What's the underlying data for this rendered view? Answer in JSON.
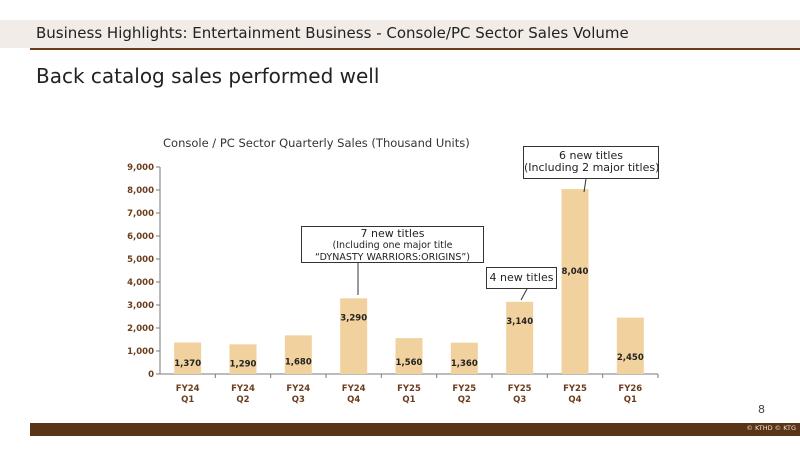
{
  "header": {
    "title": "Business Highlights: Entertainment Business - Console/PC Sector Sales Volume"
  },
  "headline": "Back catalog sales performed well",
  "colors": {
    "bar": "#f1d29e",
    "header_band": "#f1ece7",
    "rule": "#6b3d1e",
    "footer": "#5a3417",
    "tick_label": "#6b3d1e"
  },
  "chart_data": {
    "type": "bar",
    "title": "Console / PC Sector Quarterly Sales (Thousand Units)",
    "categories": [
      [
        "FY24",
        "Q1"
      ],
      [
        "FY24",
        "Q2"
      ],
      [
        "FY24",
        "Q3"
      ],
      [
        "FY24",
        "Q4"
      ],
      [
        "FY25",
        "Q1"
      ],
      [
        "FY25",
        "Q2"
      ],
      [
        "FY25",
        "Q3"
      ],
      [
        "FY25",
        "Q4"
      ],
      [
        "FY26",
        "Q1"
      ]
    ],
    "values": [
      1370,
      1290,
      1680,
      3290,
      1560,
      1360,
      3140,
      8040,
      2450
    ],
    "data_labels": [
      "1,370",
      "1,290",
      "1,680",
      "3,290",
      "1,560",
      "1,360",
      "3,140",
      "8,040",
      "2,450"
    ],
    "ylim": [
      0,
      9000
    ],
    "yticks": [
      0,
      1000,
      2000,
      3000,
      4000,
      5000,
      6000,
      7000,
      8000,
      9000
    ],
    "ytick_labels": [
      "0",
      "1,000",
      "2,000",
      "3,000",
      "4,000",
      "5,000",
      "6,000",
      "7,000",
      "8,000",
      "9,000"
    ],
    "grid": false,
    "annotations": [
      {
        "target": "FY24 Q4",
        "lines": [
          "7 new titles",
          "(Including one major title",
          "“DYNASTY WARRIORS:ORIGINS”)"
        ]
      },
      {
        "target": "FY25 Q3",
        "lines": [
          "4 new titles"
        ]
      },
      {
        "target": "FY25 Q4",
        "lines": [
          "6 new titles",
          "(Including 2 major titles)"
        ]
      }
    ]
  },
  "footer": {
    "page_number": "8",
    "copyright": "© KTHD © KTG"
  }
}
